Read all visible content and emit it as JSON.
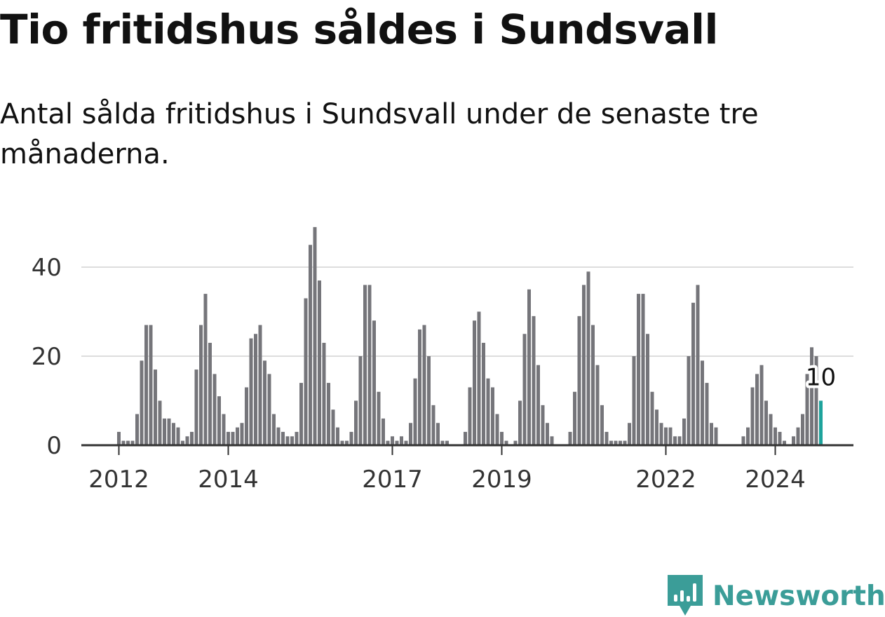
{
  "header": {
    "title": "Tio fritidshus såldes i Sundsvall",
    "subtitle": "Antal sålda fritidshus i Sundsvall under de senaste tre månaderna."
  },
  "brand": {
    "name": "Newsworthy",
    "color": "#3b9d98",
    "icon": "bar-chart-speech-bubble-icon"
  },
  "chart_data": {
    "type": "bar",
    "title": "Tio fritidshus såldes i Sundsvall",
    "subtitle": "Antal sålda fritidshus i Sundsvall under de senaste tre månaderna.",
    "xlabel": "",
    "ylabel": "",
    "ylim": [
      0,
      50
    ],
    "yticks": [
      0,
      20,
      40
    ],
    "xtick_labels": [
      "2012",
      "2014",
      "2017",
      "2019",
      "2022",
      "2024"
    ],
    "grid": true,
    "legend": "none",
    "start_month": "2012-01",
    "bar_color": "#75757a",
    "highlight_color": "#1ea39c",
    "highlight_label": "10",
    "series": [
      {
        "values": [
          3,
          1,
          1,
          1,
          7,
          19,
          27,
          27,
          17,
          10,
          6,
          6,
          5,
          4,
          1,
          2,
          3,
          17,
          27,
          34,
          23,
          16,
          11,
          7,
          3,
          3,
          4,
          5,
          13,
          24,
          25,
          27,
          19,
          16,
          7,
          4,
          3,
          2,
          2,
          3,
          14,
          33,
          45,
          49,
          37,
          23,
          14,
          8,
          4,
          1,
          1,
          3,
          10,
          20,
          36,
          36,
          28,
          12,
          6,
          1,
          2,
          1,
          2,
          1,
          5,
          15,
          26,
          27,
          20,
          9,
          5,
          1,
          1,
          0,
          0,
          0,
          3,
          13,
          28,
          30,
          23,
          15,
          13,
          7,
          3,
          1,
          0,
          1,
          10,
          25,
          35,
          29,
          18,
          9,
          5,
          2,
          0,
          0,
          0,
          3,
          12,
          29,
          36,
          39,
          27,
          18,
          9,
          3,
          1,
          1,
          1,
          1,
          5,
          20,
          34,
          34,
          25,
          12,
          8,
          5,
          4,
          4,
          2,
          2,
          6,
          20,
          32,
          36,
          19,
          14,
          5,
          4,
          0,
          0,
          0,
          0,
          0,
          2,
          4,
          13,
          16,
          18,
          10,
          7,
          4,
          3,
          1,
          0,
          2,
          4,
          7,
          16,
          22,
          20,
          10
        ]
      }
    ]
  }
}
